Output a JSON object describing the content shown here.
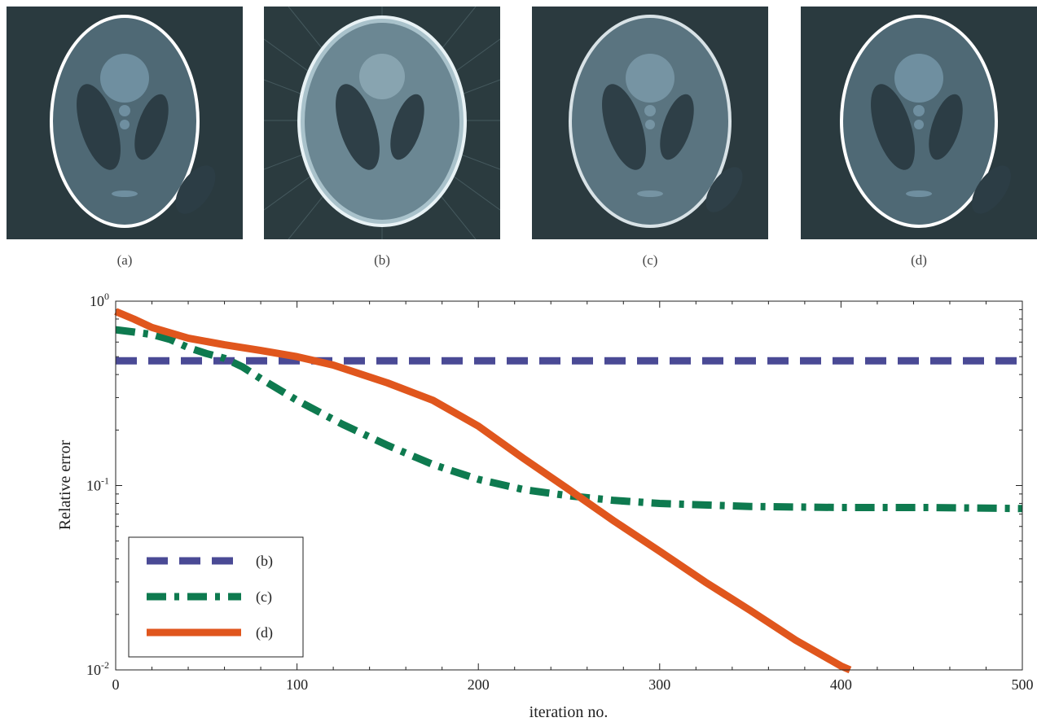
{
  "panels": [
    {
      "id": "a",
      "caption": "(a)"
    },
    {
      "id": "b",
      "caption": "(b)"
    },
    {
      "id": "c",
      "caption": "(c)"
    },
    {
      "id": "d",
      "caption": "(d)"
    }
  ],
  "colors": {
    "background_dark": "#2a3a3f",
    "phantom_fill": "#4f6975",
    "phantom_light": "#6f8fa0",
    "series_b": "#4a4a95",
    "series_c": "#0e7a4f",
    "series_d": "#e0561d"
  },
  "chart_data": {
    "type": "line",
    "xlabel": "iteration no.",
    "ylabel": "Relative error",
    "xlim": [
      0,
      500
    ],
    "ylim": [
      0.01,
      1
    ],
    "yscale": "log",
    "grid": false,
    "legend_position": "bottom-left",
    "x_ticks": [
      "0",
      "100",
      "200",
      "300",
      "400",
      "500"
    ],
    "y_ticks": [
      {
        "value": 1,
        "base": "10",
        "exp": "0"
      },
      {
        "value": 0.1,
        "base": "10",
        "exp": "-1"
      },
      {
        "value": 0.01,
        "base": "10",
        "exp": "-2"
      }
    ],
    "series": [
      {
        "name": "(b)",
        "style": "dashed",
        "color": "#4a4a95",
        "x": [
          0,
          500
        ],
        "y": [
          0.475,
          0.475
        ]
      },
      {
        "name": "(c)",
        "style": "dashdot",
        "color": "#0e7a4f",
        "x": [
          0,
          10,
          20,
          30,
          40,
          50,
          60,
          70,
          80,
          100,
          125,
          150,
          175,
          200,
          225,
          250,
          275,
          300,
          350,
          400,
          450,
          500
        ],
        "y": [
          0.7,
          0.68,
          0.66,
          0.62,
          0.56,
          0.52,
          0.49,
          0.44,
          0.38,
          0.29,
          0.215,
          0.165,
          0.13,
          0.108,
          0.095,
          0.088,
          0.083,
          0.08,
          0.077,
          0.076,
          0.076,
          0.075
        ]
      },
      {
        "name": "(d)",
        "style": "solid",
        "color": "#e0561d",
        "x": [
          0,
          10,
          20,
          40,
          60,
          80,
          100,
          120,
          150,
          175,
          200,
          225,
          250,
          275,
          300,
          325,
          350,
          375,
          400,
          405
        ],
        "y": [
          0.88,
          0.8,
          0.72,
          0.63,
          0.58,
          0.54,
          0.5,
          0.45,
          0.36,
          0.29,
          0.21,
          0.14,
          0.095,
          0.064,
          0.044,
          0.03,
          0.021,
          0.0145,
          0.0105,
          0.01
        ]
      }
    ]
  }
}
